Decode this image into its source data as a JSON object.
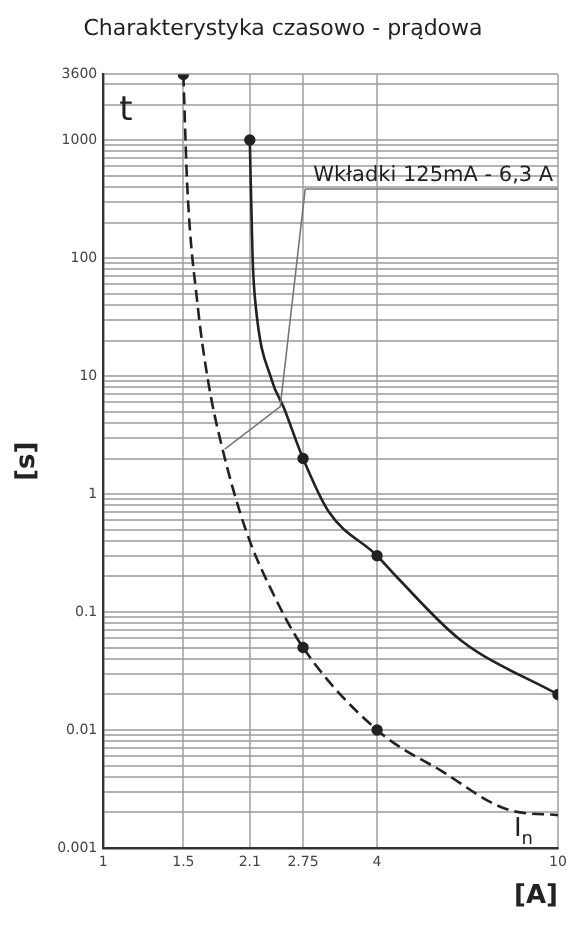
{
  "chart_data": {
    "type": "line",
    "title": "Charakterystyka czasowo - prądowa",
    "xlabel": "[A]",
    "ylabel": "[s]",
    "annotations": [
      "t",
      "Wkładki 125mA - 6,3 A",
      "I$_{n}$"
    ],
    "log": "xy",
    "grid": true,
    "legend": false,
    "xlim": [
      1,
      10
    ],
    "xticks": [
      1,
      1.5,
      2.1,
      2.75,
      4,
      10
    ],
    "ylim": [
      0.001,
      3600
    ],
    "yticks": [
      0.001,
      {
        "value": 0.002,
        "label": null
      },
      {
        "value": 0.003,
        "label": null
      },
      {
        "value": 0.004,
        "label": null
      },
      {
        "value": 0.005,
        "label": null
      },
      {
        "value": 0.006,
        "label": null
      },
      {
        "value": 0.007,
        "label": null
      },
      {
        "value": 0.008,
        "label": null
      },
      {
        "value": 0.009,
        "label": null
      },
      0.01,
      {
        "value": 0.02,
        "label": null
      },
      {
        "value": 0.03,
        "label": null
      },
      {
        "value": 0.04,
        "label": null
      },
      {
        "value": 0.05,
        "label": null
      },
      {
        "value": 0.06,
        "label": null
      },
      {
        "value": 0.07,
        "label": null
      },
      {
        "value": 0.08,
        "label": null
      },
      {
        "value": 0.09,
        "label": null
      },
      0.1,
      {
        "value": 0.2,
        "label": null
      },
      {
        "value": 0.3,
        "label": null
      },
      {
        "value": 0.4,
        "label": null
      },
      {
        "value": 0.5,
        "label": null
      },
      {
        "value": 0.6,
        "label": null
      },
      {
        "value": 0.7,
        "label": null
      },
      {
        "value": 0.8,
        "label": null
      },
      {
        "value": 0.9,
        "label": null
      },
      1,
      {
        "value": 2,
        "label": null
      },
      {
        "value": 3,
        "label": null
      },
      {
        "value": 4,
        "label": null
      },
      {
        "value": 5,
        "label": null
      },
      {
        "value": 6,
        "label": null
      },
      {
        "value": 7,
        "label": null
      },
      {
        "value": 8,
        "label": null
      },
      {
        "value": 9,
        "label": null
      },
      10,
      {
        "value": 20,
        "label": null
      },
      {
        "value": 30,
        "label": null
      },
      {
        "value": 40,
        "label": null
      },
      {
        "value": 50,
        "label": null
      },
      {
        "value": 60,
        "label": null
      },
      {
        "value": 70,
        "label": null
      },
      {
        "value": 80,
        "label": null
      },
      {
        "value": 90,
        "label": null
      },
      100,
      {
        "value": 200,
        "label": null
      },
      {
        "value": 300,
        "label": null
      },
      {
        "value": 400,
        "label": null
      },
      {
        "value": 500,
        "label": null
      },
      {
        "value": 600,
        "label": null
      },
      {
        "value": 700,
        "label": null
      },
      {
        "value": 800,
        "label": null
      },
      {
        "value": 900,
        "label": null
      },
      1000,
      {
        "value": 2000,
        "label": null
      },
      {
        "value": 3000,
        "label": null
      },
      3600
    ],
    "series": [
      {
        "color": "#222222",
        "line_style": "dashed",
        "marker": "none",
        "x": [
          1.5,
          1.53,
          1.61,
          1.7,
          1.82,
          2.06,
          2.37,
          2.75,
          4,
          5.54,
          7.8,
          10
        ],
        "values": [
          3600,
          410,
          42,
          9.1,
          2.6,
          0.49,
          0.14,
          0.05,
          0.01,
          0.0045,
          0.0021,
          0.0019
        ]
      },
      {
        "color": "#222222",
        "line_style": "solid",
        "marker": "none",
        "x": [
          2.1,
          2.13,
          2.16,
          2.35,
          2.49,
          2.75,
          3.13,
          4,
          4.41,
          6.1,
          10
        ],
        "values": [
          1000,
          100,
          42,
          9.1,
          5.5,
          2,
          0.71,
          0.3,
          0.2,
          0.058,
          0.02
        ]
      },
      {
        "type": "scatter",
        "color": "#222222",
        "marker": "circle",
        "x": [
          1.5,
          2.75,
          4,
          2.1,
          2.75,
          4,
          10
        ],
        "values": [
          3600,
          0.05,
          0.01,
          1000,
          2,
          0.3,
          0.02
        ]
      }
    ]
  }
}
